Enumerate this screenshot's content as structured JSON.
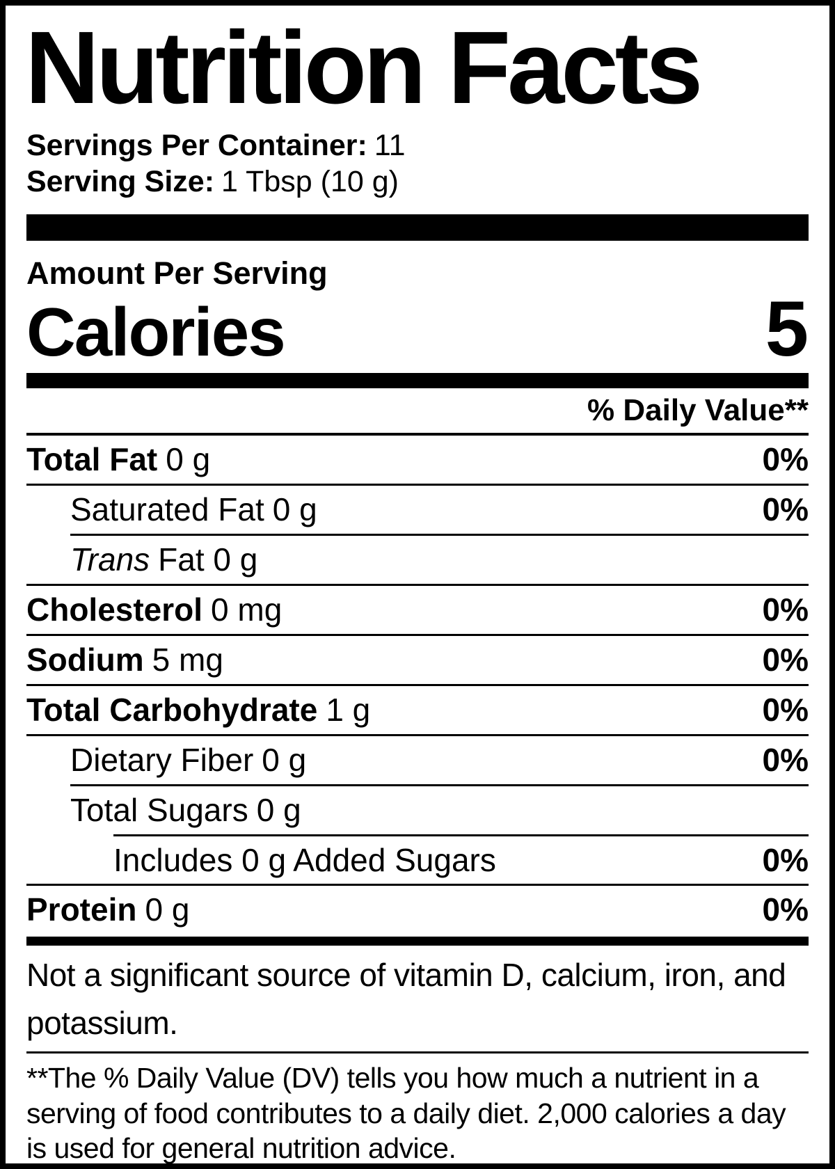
{
  "header": {
    "title": "Nutrition Facts",
    "servings_per_container_label": "Servings Per Container:",
    "servings_per_container_value": "11",
    "serving_size_label": "Serving Size:",
    "serving_size_value": "1 Tbsp (10 g)"
  },
  "calories_section": {
    "amount_per_serving": "Amount Per Serving",
    "calories_label": "Calories",
    "calories_value": "5"
  },
  "table": {
    "daily_value_header": "% Daily Value**",
    "rows": [
      {
        "name": "Total Fat",
        "amount": "0 g",
        "dv": "0%"
      },
      {
        "name": "Saturated Fat",
        "amount": "0 g",
        "dv": "0%"
      },
      {
        "name": "Trans",
        "amount": "Fat 0 g"
      },
      {
        "name": "Cholesterol",
        "amount": "0 mg",
        "dv": "0%"
      },
      {
        "name": "Sodium",
        "amount": "5 mg",
        "dv": "0%"
      },
      {
        "name": "Total Carbohydrate",
        "amount": "1 g",
        "dv": "0%"
      },
      {
        "name": "Dietary Fiber",
        "amount": "0 g",
        "dv": "0%"
      },
      {
        "name": "Total Sugars",
        "amount": "0 g"
      },
      {
        "name": "Includes 0 g Added Sugars",
        "dv": "0%"
      },
      {
        "name": "Protein",
        "amount": "0 g",
        "dv": "0%"
      }
    ]
  },
  "footer": {
    "not_significant": "Not a significant source of vitamin D, calcium, iron, and potassium.",
    "daily_value_note": "**The % Daily Value (DV) tells you how much a nutrient in a serving of food contributes to a daily diet. 2,000 calories a day is used for general nutrition advice."
  },
  "colors": {
    "text": "#000000",
    "background": "#ffffff",
    "rule": "#000000"
  }
}
